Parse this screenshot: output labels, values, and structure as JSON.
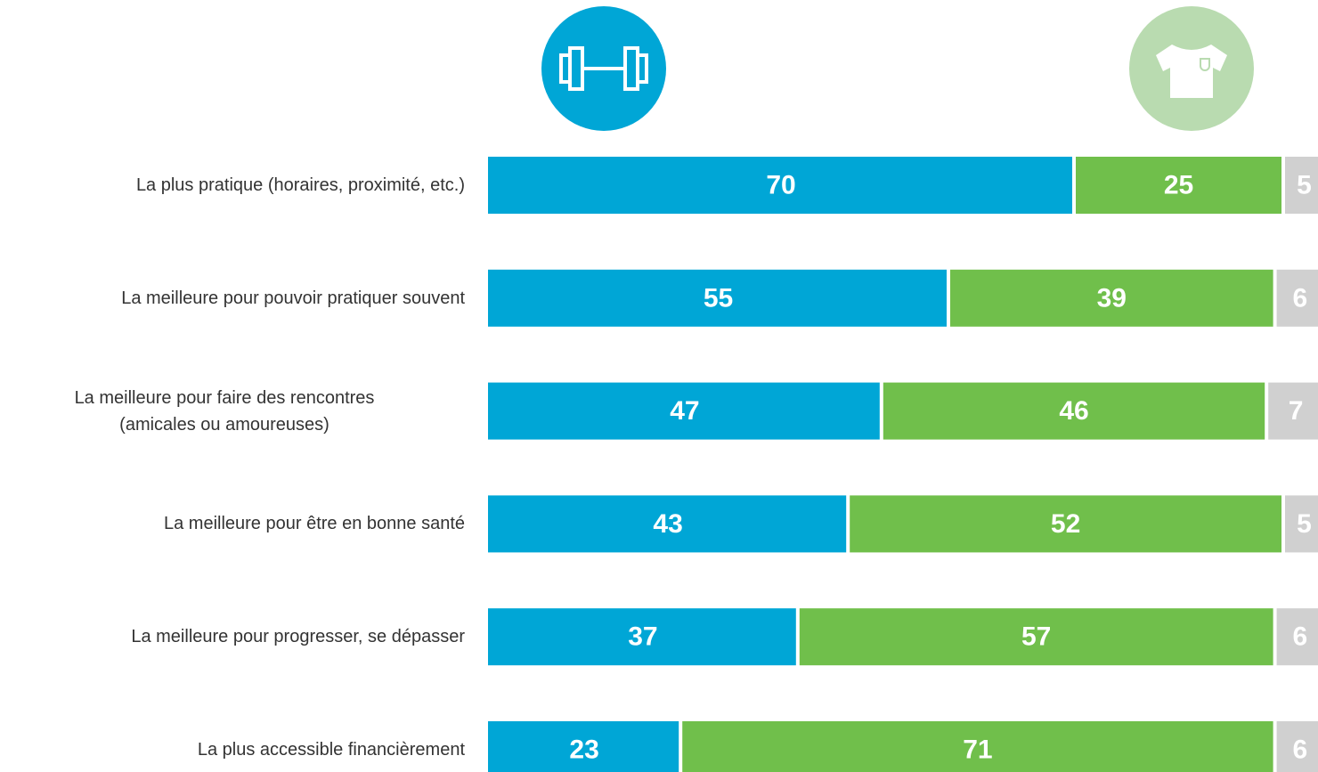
{
  "chart_data": {
    "type": "stacked_barh",
    "categories": [
      "La plus pratique (horaires, proximité, etc.)",
      "La meilleure pour pouvoir pratiquer souvent",
      "La meilleure pour faire des rencontres\n(amicales ou amoureuses)",
      "La meilleure pour être en bonne santé",
      "La meilleure pour progresser, se dépasser",
      "La plus accessible financièrement"
    ],
    "series": [
      {
        "color": "#00a6d6",
        "values": [
          70,
          55,
          47,
          43,
          37,
          23
        ]
      },
      {
        "color": "#70bf4b",
        "values": [
          25,
          39,
          46,
          52,
          57,
          71
        ]
      },
      {
        "color": "#d0d0d0",
        "values": [
          5,
          6,
          7,
          5,
          6,
          6
        ]
      }
    ],
    "xlim": [
      0,
      100
    ]
  }
}
